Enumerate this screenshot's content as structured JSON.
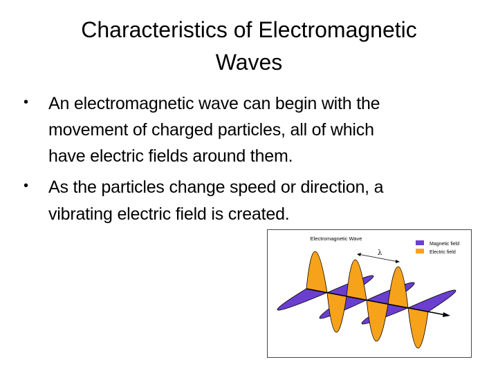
{
  "slide": {
    "title_lines": [
      "Characteristics of Electromagnetic",
      "Waves"
    ],
    "bullets": [
      {
        "lines": [
          "An electromagnetic wave can begin with the",
          "movement of charged particles, all of which",
          "have electric fields around them."
        ]
      },
      {
        "lines": [
          "As the particles change speed or direction, a",
          "vibrating electric field is created."
        ]
      }
    ]
  },
  "figure": {
    "title": "Electromagnetic Wave",
    "wavelength_symbol": "λ",
    "legend": [
      {
        "label": "Magnetic field",
        "color": "#6a3fcf"
      },
      {
        "label": "Electric field",
        "color": "#f7a21b"
      }
    ]
  }
}
